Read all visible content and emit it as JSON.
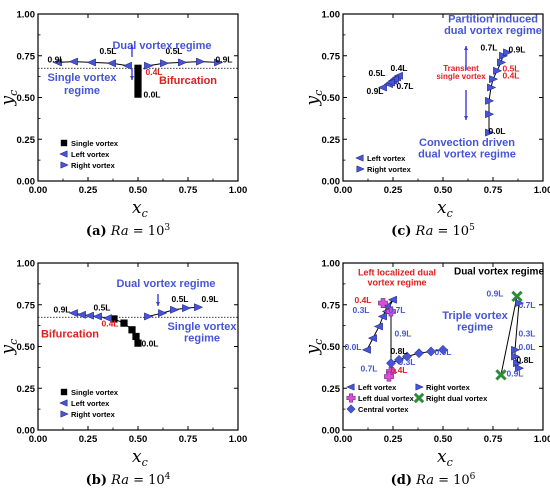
{
  "colors": {
    "black": "#000000",
    "blue": "#4655d6",
    "red": "#e01e1e",
    "magenta": "#d64fd6",
    "green": "#2e8b3a",
    "arrow_blue": "#3a3adf"
  },
  "axis": {
    "xticks": [
      "0.00",
      "0.25",
      "0.50",
      "0.75",
      "1.00"
    ],
    "yticks": [
      "0.00",
      "0.25",
      "0.50",
      "0.75",
      "1.00"
    ],
    "xlabel_main": "x",
    "xlabel_sub": "c",
    "ylabel_main": "y",
    "ylabel_sub": "c"
  },
  "chart_data": [
    {
      "type": "scatter",
      "xlim": [
        0,
        1
      ],
      "ylim": [
        0,
        1
      ],
      "caption": {
        "letter": "(a)",
        "param": "Ra",
        "eq": " = 10",
        "exp": "3"
      },
      "hline_y": 0.675,
      "series": [
        {
          "name": "Single vortex",
          "marker": "square",
          "color": "#000000",
          "x": [
            0.5,
            0.5,
            0.5,
            0.5,
            0.5
          ],
          "y": [
            0.52,
            0.56,
            0.6,
            0.64,
            0.675
          ]
        },
        {
          "name": "Left vortex",
          "marker": "tri-left",
          "color": "#4655d6",
          "x": [
            0.1,
            0.18,
            0.27,
            0.37,
            0.45
          ],
          "y": [
            0.71,
            0.715,
            0.71,
            0.705,
            0.69
          ]
        },
        {
          "name": "Right vortex",
          "marker": "tri-right",
          "color": "#4655d6",
          "x": [
            0.55,
            0.63,
            0.72,
            0.81,
            0.9
          ],
          "y": [
            0.69,
            0.705,
            0.71,
            0.715,
            0.71
          ]
        }
      ],
      "point_labels": [
        {
          "text": "0.9L",
          "x": 0.09,
          "y": 0.71,
          "color": "#000000"
        },
        {
          "text": "0.5L",
          "x": 0.35,
          "y": 0.76,
          "color": "#000000"
        },
        {
          "text": "0.5L",
          "x": 0.68,
          "y": 0.76,
          "color": "#000000"
        },
        {
          "text": "0.9L",
          "x": 0.93,
          "y": 0.71,
          "color": "#000000"
        },
        {
          "text": "0.4L",
          "x": 0.58,
          "y": 0.635,
          "color": "#e01e1e"
        },
        {
          "text": "0.0L",
          "x": 0.57,
          "y": 0.5,
          "color": "#000000"
        }
      ],
      "annotations": [
        {
          "text": "Dual vortex regime",
          "x": 0.62,
          "y": 0.79,
          "color": "#4655d6",
          "size": 11
        },
        {
          "text": "Single vortex",
          "x": 0.22,
          "y": 0.6,
          "color": "#4655d6",
          "size": 11
        },
        {
          "text": "regime",
          "x": 0.22,
          "y": 0.52,
          "color": "#4655d6",
          "size": 11
        },
        {
          "text": "Bifurcation",
          "x": 0.75,
          "y": 0.58,
          "color": "#e01e1e",
          "size": 11
        }
      ],
      "legend": [
        "Single vortex",
        "Left vortex",
        "Right vortex"
      ]
    },
    {
      "type": "scatter",
      "xlim": [
        0,
        1
      ],
      "ylim": [
        0,
        1
      ],
      "caption": {
        "letter": "(c)",
        "param": "Ra",
        "eq": " = 10",
        "exp": "5"
      },
      "series": [
        {
          "name": "Left vortex",
          "marker": "tri-left",
          "color": "#4655d6",
          "x": [
            0.2,
            0.23,
            0.25,
            0.27,
            0.28,
            0.26,
            0.24
          ],
          "y": [
            0.56,
            0.58,
            0.6,
            0.62,
            0.63,
            0.61,
            0.59
          ]
        },
        {
          "name": "Right vortex",
          "marker": "tri-right",
          "color": "#4655d6",
          "x": [
            0.73,
            0.73,
            0.73,
            0.74,
            0.75,
            0.77,
            0.79,
            0.8,
            0.82
          ],
          "y": [
            0.29,
            0.4,
            0.48,
            0.56,
            0.61,
            0.66,
            0.71,
            0.75,
            0.77
          ]
        }
      ],
      "point_labels": [
        {
          "text": "0.4L",
          "x": 0.28,
          "y": 0.66,
          "color": "#000000"
        },
        {
          "text": "0.5L",
          "x": 0.17,
          "y": 0.63,
          "color": "#000000"
        },
        {
          "text": "0.7L",
          "x": 0.31,
          "y": 0.55,
          "color": "#000000"
        },
        {
          "text": "0.9L",
          "x": 0.16,
          "y": 0.52,
          "color": "#000000"
        },
        {
          "text": "0.7L",
          "x": 0.73,
          "y": 0.78,
          "color": "#000000"
        },
        {
          "text": "0.9L",
          "x": 0.87,
          "y": 0.77,
          "color": "#000000"
        },
        {
          "text": "0.5L",
          "x": 0.84,
          "y": 0.655,
          "color": "#e01e1e"
        },
        {
          "text": "0.4L",
          "x": 0.84,
          "y": 0.615,
          "color": "#e01e1e"
        },
        {
          "text": "0.0L",
          "x": 0.77,
          "y": 0.28,
          "color": "#000000"
        }
      ],
      "annotations": [
        {
          "text": "Partition induced",
          "x": 0.75,
          "y": 0.95,
          "color": "#4655d6",
          "size": 11
        },
        {
          "text": "dual vortex regime",
          "x": 0.75,
          "y": 0.88,
          "color": "#4655d6",
          "size": 11
        },
        {
          "text": "Transient",
          "x": 0.59,
          "y": 0.66,
          "color": "#e01e1e",
          "size": 8
        },
        {
          "text": "single vortex",
          "x": 0.59,
          "y": 0.61,
          "color": "#e01e1e",
          "size": 8
        },
        {
          "text": "Convection driven",
          "x": 0.62,
          "y": 0.21,
          "color": "#4655d6",
          "size": 11
        },
        {
          "text": "dual vortex regime",
          "x": 0.62,
          "y": 0.14,
          "color": "#4655d6",
          "size": 11
        }
      ],
      "legend": [
        "Left vortex",
        "Right vortex"
      ]
    },
    {
      "type": "scatter",
      "xlim": [
        0,
        1
      ],
      "ylim": [
        0,
        1
      ],
      "caption": {
        "letter": "(b)",
        "param": "Ra",
        "eq": " = 10",
        "exp": "4"
      },
      "hline_y": 0.675,
      "series": [
        {
          "name": "Single vortex",
          "marker": "square",
          "color": "#000000",
          "x": [
            0.38,
            0.43,
            0.47,
            0.49,
            0.5
          ],
          "y": [
            0.665,
            0.64,
            0.6,
            0.56,
            0.52
          ]
        },
        {
          "name": "Left vortex",
          "marker": "tri-left",
          "color": "#4655d6",
          "x": [
            0.18,
            0.22,
            0.26,
            0.3,
            0.35
          ],
          "y": [
            0.7,
            0.69,
            0.685,
            0.68,
            0.67
          ]
        },
        {
          "name": "Right vortex",
          "marker": "tri-right",
          "color": "#4655d6",
          "x": [
            0.55,
            0.62,
            0.68,
            0.74,
            0.8
          ],
          "y": [
            0.68,
            0.7,
            0.72,
            0.73,
            0.735
          ]
        }
      ],
      "point_labels": [
        {
          "text": "0.9L",
          "x": 0.12,
          "y": 0.705,
          "color": "#000000"
        },
        {
          "text": "0.5L",
          "x": 0.32,
          "y": 0.715,
          "color": "#000000"
        },
        {
          "text": "0.4L",
          "x": 0.36,
          "y": 0.62,
          "color": "#e01e1e"
        },
        {
          "text": "0.0L",
          "x": 0.56,
          "y": 0.5,
          "color": "#000000"
        },
        {
          "text": "0.5L",
          "x": 0.71,
          "y": 0.765,
          "color": "#000000"
        },
        {
          "text": "0.9L",
          "x": 0.86,
          "y": 0.765,
          "color": "#000000"
        }
      ],
      "annotations": [
        {
          "text": "Dual vortex regime",
          "x": 0.64,
          "y": 0.855,
          "color": "#4655d6",
          "size": 11
        },
        {
          "text": "Single vortex",
          "x": 0.82,
          "y": 0.6,
          "color": "#4655d6",
          "size": 11
        },
        {
          "text": "regime",
          "x": 0.82,
          "y": 0.53,
          "color": "#4655d6",
          "size": 11
        },
        {
          "text": "Bifurcation",
          "x": 0.16,
          "y": 0.555,
          "color": "#e01e1e",
          "size": 11
        }
      ],
      "legend": [
        "Single vortex",
        "Left vortex",
        "Right vortex"
      ]
    },
    {
      "type": "scatter",
      "xlim": [
        0,
        1
      ],
      "ylim": [
        0,
        1
      ],
      "caption": {
        "letter": "(d)",
        "param": "Ra",
        "eq": " = 10",
        "exp": "6"
      },
      "series": [
        {
          "name": "Left vortex",
          "marker": "tri-left",
          "color": "#4655d6",
          "x": [
            0.12,
            0.15,
            0.18,
            0.2,
            0.22,
            0.25,
            0.22
          ],
          "y": [
            0.48,
            0.55,
            0.62,
            0.68,
            0.74,
            0.78,
            0.71
          ]
        },
        {
          "name": "Left dual vortex",
          "marker": "plus",
          "color": "#d64fd6",
          "x": [
            0.2,
            0.24,
            0.24,
            0.23
          ],
          "y": [
            0.76,
            0.71,
            0.35,
            0.32
          ]
        },
        {
          "name": "Central vortex",
          "marker": "diamond",
          "color": "#4655d6",
          "x": [
            0.24,
            0.28,
            0.32,
            0.38,
            0.44,
            0.5
          ],
          "y": [
            0.4,
            0.42,
            0.44,
            0.46,
            0.47,
            0.48
          ]
        },
        {
          "name": "Right vortex",
          "marker": "tri-right",
          "color": "#4655d6",
          "x": [
            0.88,
            0.86,
            0.86,
            0.87,
            0.88
          ],
          "y": [
            0.76,
            0.48,
            0.44,
            0.4,
            0.37
          ]
        },
        {
          "name": "Right dual vortex",
          "marker": "cross",
          "color": "#2e8b3a",
          "x": [
            0.87,
            0.79
          ],
          "y": [
            0.8,
            0.33
          ]
        }
      ],
      "point_labels": [
        {
          "text": "0.4L",
          "x": 0.1,
          "y": 0.76,
          "color": "#e01e1e"
        },
        {
          "text": "0.3L",
          "x": 0.09,
          "y": 0.7,
          "color": "#4655d6"
        },
        {
          "text": "0.7L",
          "x": 0.27,
          "y": 0.7,
          "color": "#4655d6"
        },
        {
          "text": "0.9L",
          "x": 0.3,
          "y": 0.56,
          "color": "#4655d6"
        },
        {
          "text": "0.0L",
          "x": 0.05,
          "y": 0.48,
          "color": "#4655d6"
        },
        {
          "text": "0.8L",
          "x": 0.28,
          "y": 0.455,
          "color": "#000000"
        },
        {
          "text": "0.3L",
          "x": 0.32,
          "y": 0.39,
          "color": "#4655d6"
        },
        {
          "text": "0.7L",
          "x": 0.13,
          "y": 0.35,
          "color": "#4655d6"
        },
        {
          "text": "0.4L",
          "x": 0.28,
          "y": 0.34,
          "color": "#e01e1e"
        },
        {
          "text": "0.0L",
          "x": 0.5,
          "y": 0.45,
          "color": "#4655d6"
        },
        {
          "text": "0.9L",
          "x": 0.76,
          "y": 0.8,
          "color": "#4655d6"
        },
        {
          "text": "0.7L",
          "x": 0.92,
          "y": 0.73,
          "color": "#4655d6"
        },
        {
          "text": "0.3L",
          "x": 0.92,
          "y": 0.56,
          "color": "#4655d6"
        },
        {
          "text": "0.0L",
          "x": 0.92,
          "y": 0.48,
          "color": "#4655d6"
        },
        {
          "text": "0.8L",
          "x": 0.91,
          "y": 0.4,
          "color": "#000000"
        },
        {
          "text": "0.9L",
          "x": 0.86,
          "y": 0.32,
          "color": "#4655d6"
        }
      ],
      "annotations": [
        {
          "text": "Left localized dual",
          "x": 0.27,
          "y": 0.925,
          "color": "#e01e1e",
          "size": 9
        },
        {
          "text": "vortex regime",
          "x": 0.27,
          "y": 0.865,
          "color": "#e01e1e",
          "size": 9
        },
        {
          "text": "Dual vortex regime",
          "x": 0.78,
          "y": 0.93,
          "color": "#000000",
          "size": 10
        },
        {
          "text": "Triple vortex",
          "x": 0.66,
          "y": 0.665,
          "color": "#4655d6",
          "size": 11
        },
        {
          "text": "regime",
          "x": 0.66,
          "y": 0.595,
          "color": "#4655d6",
          "size": 11
        }
      ],
      "legend": [
        "Left vortex",
        "Right vortex",
        "Left dual vortex",
        "Right dual vortex",
        "Central vortex"
      ]
    }
  ]
}
